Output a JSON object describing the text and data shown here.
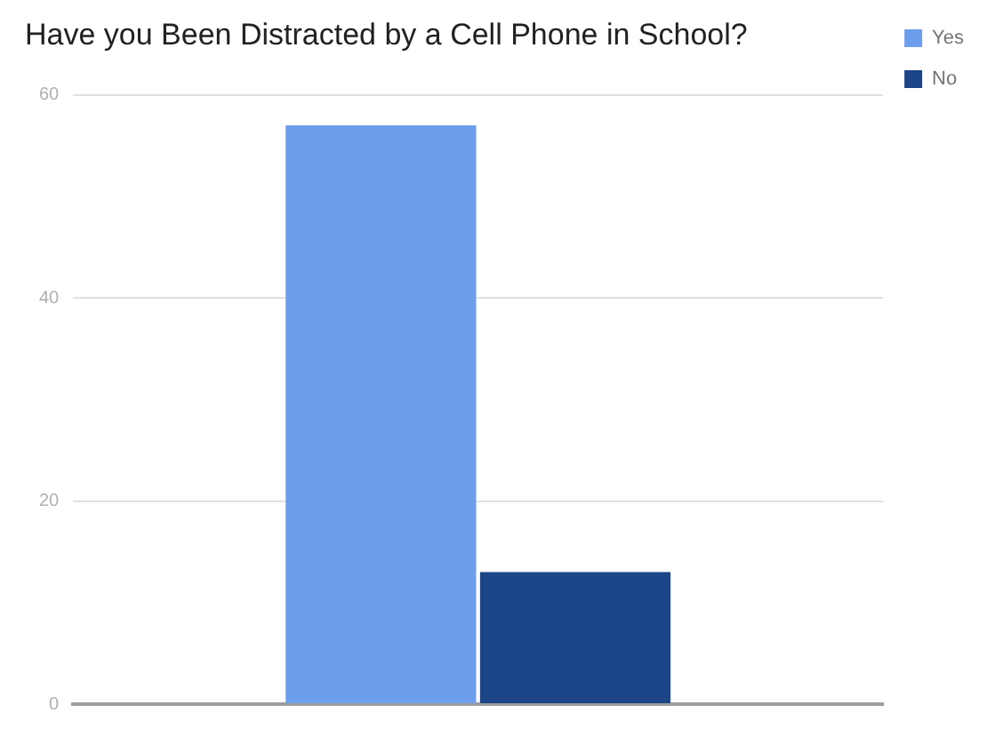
{
  "chart_data": {
    "type": "bar",
    "title": "Have you Been Distracted by a Cell Phone in School?",
    "categories": [
      null
    ],
    "series": [
      {
        "name": "Yes",
        "color": "#6d9eeb",
        "values": [
          57
        ]
      },
      {
        "name": "No",
        "color": "#1c4587",
        "values": [
          13
        ]
      }
    ],
    "ylim": [
      0,
      60
    ],
    "yticks": [
      0,
      20,
      40,
      60
    ],
    "grid": "y",
    "legend": "right",
    "tick_labels": "y"
  }
}
